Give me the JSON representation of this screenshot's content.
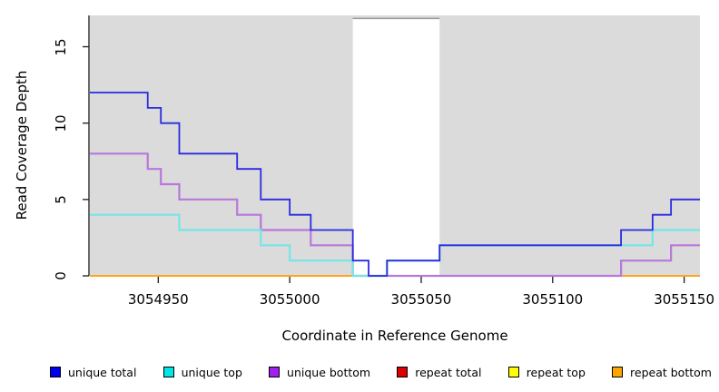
{
  "chart_data": {
    "type": "line",
    "subtype": "step-plot-read-coverage",
    "title": "",
    "xlabel": "Coordinate in Reference Genome",
    "ylabel": "Read Coverage Depth",
    "xlim": [
      3054924,
      3055156
    ],
    "ylim": [
      0,
      17.05
    ],
    "grid": false,
    "legend_position": "bottom",
    "plot_bg": "#DBDBDB",
    "page_bg": "#FFFFFF",
    "axis_color": "#1a1a1a",
    "x_ticks": [
      {
        "value": 3054950,
        "label": "3054950"
      },
      {
        "value": 3055000,
        "label": "3055000"
      },
      {
        "value": 3055050,
        "label": "3055050"
      },
      {
        "value": 3055100,
        "label": "3055100"
      },
      {
        "value": 3055150,
        "label": "3055150"
      }
    ],
    "y_ticks": [
      {
        "value": 0,
        "label": "0"
      },
      {
        "value": 5,
        "label": "5"
      },
      {
        "value": 10,
        "label": "10"
      },
      {
        "value": 15,
        "label": "15"
      }
    ],
    "mask_region": {
      "x_start": 3055024,
      "x_end": 3055057,
      "y_top": 16.85,
      "fill": "#FFFFFF",
      "border_top_color": "#999999"
    },
    "series": [
      {
        "name": "unique total",
        "color": "#0000EE",
        "line_color": "#2B2BE0",
        "line_width": 1.8,
        "steps": [
          [
            3054924,
            12
          ],
          [
            3054946,
            11
          ],
          [
            3054951,
            10
          ],
          [
            3054958,
            8
          ],
          [
            3054980,
            7
          ],
          [
            3054989,
            5
          ],
          [
            3055000,
            4
          ],
          [
            3055008,
            3
          ],
          [
            3055024,
            1
          ],
          [
            3055030,
            0
          ],
          [
            3055037,
            1
          ],
          [
            3055057,
            2
          ],
          [
            3055126,
            3
          ],
          [
            3055138,
            4
          ],
          [
            3055145,
            5
          ]
        ],
        "x_end": 3055156
      },
      {
        "name": "unique top",
        "color": "#00E5E5",
        "line_color": "#74E6E6",
        "line_width": 2.2,
        "steps": [
          [
            3054924,
            4
          ],
          [
            3054958,
            3
          ],
          [
            3054989,
            2
          ],
          [
            3055000,
            1
          ],
          [
            3055024,
            0
          ],
          [
            3055037,
            1
          ],
          [
            3055057,
            2
          ],
          [
            3055138,
            3
          ]
        ],
        "x_end": 3055156
      },
      {
        "name": "unique bottom",
        "color": "#A020F0",
        "line_color": "#B877DC",
        "line_width": 2.2,
        "steps": [
          [
            3054924,
            8
          ],
          [
            3054946,
            7
          ],
          [
            3054951,
            6
          ],
          [
            3054958,
            5
          ],
          [
            3054980,
            4
          ],
          [
            3054989,
            3
          ],
          [
            3055008,
            2
          ],
          [
            3055024,
            0
          ],
          [
            3055126,
            1
          ],
          [
            3055145,
            2
          ]
        ],
        "x_end": 3055156
      },
      {
        "name": "repeat total",
        "color": "#DD0000",
        "line_color": "#DD4444",
        "line_width": 2,
        "steps": [
          [
            3054924,
            0
          ]
        ],
        "x_end": 3055156
      },
      {
        "name": "repeat top",
        "color": "#FFFF00",
        "line_color": "#F0F000",
        "line_width": 2,
        "steps": [
          [
            3054924,
            0
          ]
        ],
        "x_end": 3055156
      },
      {
        "name": "repeat bottom",
        "color": "#FFA500",
        "line_color": "#FFA51E",
        "line_width": 2,
        "steps": [
          [
            3054924,
            0
          ]
        ],
        "x_end": 3055156
      }
    ],
    "draw_order": [
      3,
      4,
      5,
      2,
      1,
      0
    ]
  }
}
